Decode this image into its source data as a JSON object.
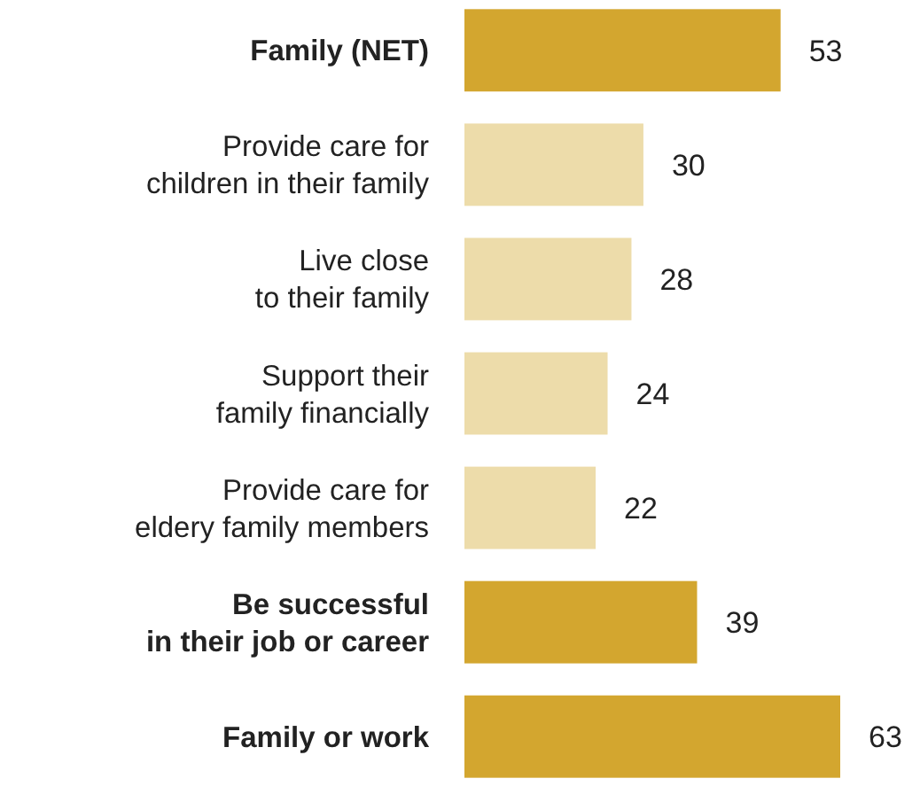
{
  "chart_data": {
    "type": "bar",
    "orientation": "horizontal",
    "data_labels": true,
    "categories": [
      "Family (NET)",
      "Provide care for\nchildren in their family",
      "Live close\nto their family",
      "Support their\nfamily financially",
      "Provide care for\neldery family members",
      "Be successful\nin their job or career",
      "Family or work"
    ],
    "values": [
      53,
      30,
      28,
      24,
      22,
      39,
      63
    ],
    "colors": [
      "#d3a62f",
      "#eddcaa",
      "#eddcaa",
      "#eddcaa",
      "#eddcaa",
      "#d3a62f",
      "#d3a62f"
    ]
  }
}
